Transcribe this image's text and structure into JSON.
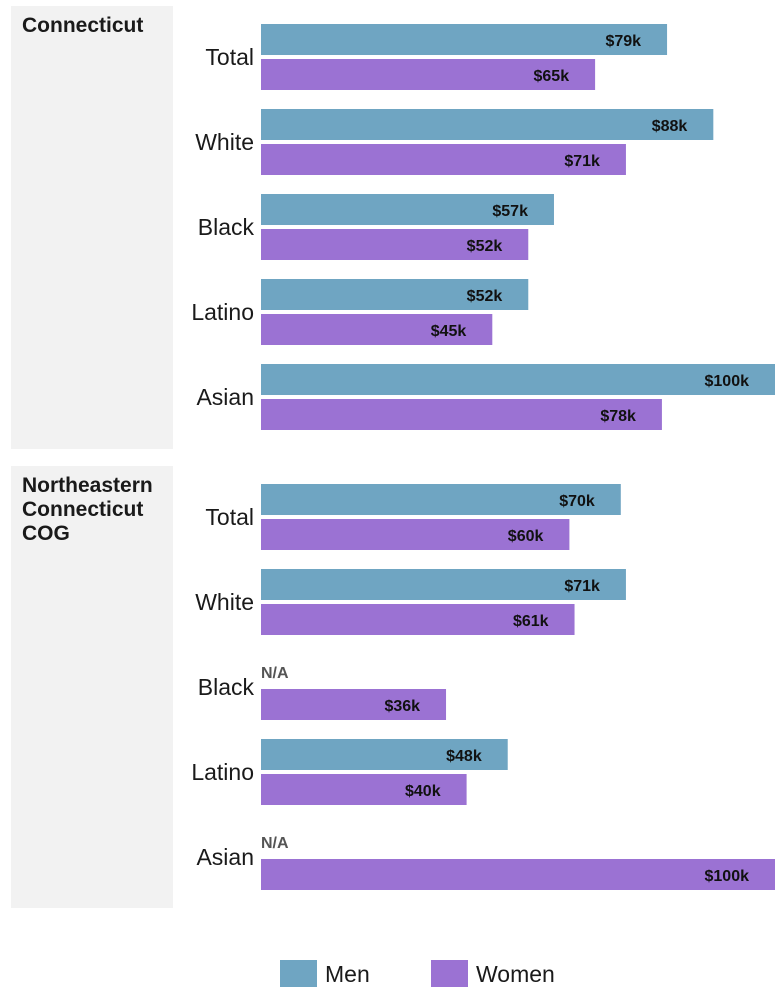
{
  "chart_data": {
    "type": "bar",
    "orientation": "horizontal",
    "units": "k",
    "xlim": [
      0,
      100
    ],
    "grid": false,
    "legend_placement": "bottom-center",
    "colors": {
      "Men": "#6fa5c2",
      "Women": "#9b72d3",
      "panel": "#f2f2f2",
      "na": "#555555"
    },
    "legend": [
      "Men",
      "Women"
    ],
    "categories": [
      "Total",
      "White",
      "Black",
      "Latino",
      "Asian"
    ],
    "na_text": "N/A",
    "panels": [
      {
        "region": "Connecticut",
        "series": [
          {
            "name": "Men",
            "values": [
              79,
              88,
              57,
              52,
              100
            ],
            "labels": [
              "$79k",
              "$88k",
              "$57k",
              "$52k",
              "$100k"
            ]
          },
          {
            "name": "Women",
            "values": [
              65,
              71,
              52,
              45,
              78
            ],
            "labels": [
              "$65k",
              "$71k",
              "$52k",
              "$45k",
              "$78k"
            ]
          }
        ]
      },
      {
        "region": "Northeastern Connecticut COG",
        "series": [
          {
            "name": "Men",
            "values": [
              70,
              71,
              null,
              48,
              null
            ],
            "labels": [
              "$70k",
              "$71k",
              null,
              "$48k",
              null
            ]
          },
          {
            "name": "Women",
            "values": [
              60,
              61,
              36,
              40,
              100
            ],
            "labels": [
              "$60k",
              "$61k",
              "$36k",
              "$40k",
              "$100k"
            ]
          }
        ]
      }
    ]
  }
}
